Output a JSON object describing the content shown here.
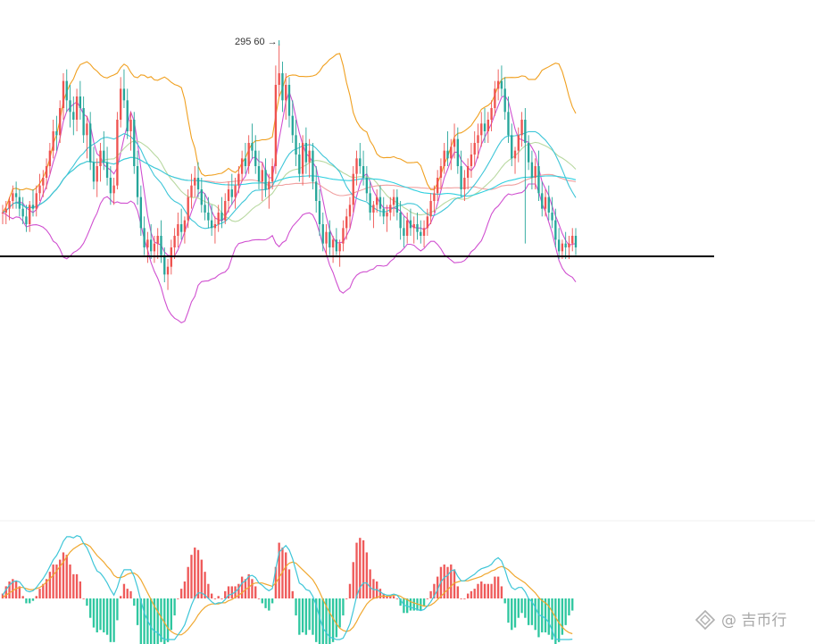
{
  "chart_data": [
    {
      "type": "candlestick",
      "title": "",
      "xlabel": "",
      "ylabel": "",
      "ylim": [
        210,
        300
      ],
      "grid": false,
      "legend": "none",
      "annotation": {
        "text": "295 60 →",
        "value": 295.6,
        "bar_index": 82
      },
      "support_line": {
        "value": 240.7
      },
      "ohlc": [
        [
          252,
          254,
          249,
          252
        ],
        [
          252,
          255,
          249,
          253
        ],
        [
          253,
          256,
          250,
          255
        ],
        [
          255,
          259,
          253,
          257
        ],
        [
          257,
          260,
          253,
          256
        ],
        [
          256,
          258,
          251,
          253
        ],
        [
          253,
          256,
          249,
          251
        ],
        [
          251,
          254,
          247,
          249
        ],
        [
          249,
          255,
          247,
          254
        ],
        [
          254,
          258,
          251,
          253
        ],
        [
          253,
          259,
          251,
          257
        ],
        [
          257,
          262,
          255,
          259
        ],
        [
          259,
          263,
          256,
          261
        ],
        [
          261,
          266,
          258,
          264
        ],
        [
          264,
          270,
          262,
          268
        ],
        [
          268,
          276,
          266,
          273
        ],
        [
          273,
          277,
          268,
          272
        ],
        [
          272,
          281,
          270,
          279
        ],
        [
          279,
          288,
          276,
          286
        ],
        [
          286,
          289,
          278,
          281
        ],
        [
          281,
          285,
          274,
          278
        ],
        [
          278,
          282,
          272,
          276
        ],
        [
          276,
          284,
          273,
          282
        ],
        [
          282,
          286,
          276,
          279
        ],
        [
          279,
          282,
          270,
          272
        ],
        [
          272,
          277,
          266,
          275
        ],
        [
          275,
          278,
          263,
          265
        ],
        [
          265,
          269,
          258,
          260
        ],
        [
          260,
          266,
          256,
          264
        ],
        [
          264,
          270,
          260,
          268
        ],
        [
          268,
          273,
          263,
          265
        ],
        [
          265,
          269,
          259,
          261
        ],
        [
          261,
          264,
          254,
          257
        ],
        [
          257,
          261,
          254,
          259
        ],
        [
          259,
          278,
          258,
          276
        ],
        [
          276,
          287,
          274,
          284
        ],
        [
          284,
          289,
          279,
          281
        ],
        [
          281,
          284,
          271,
          273
        ],
        [
          273,
          278,
          268,
          276
        ],
        [
          276,
          278,
          262,
          264
        ],
        [
          264,
          268,
          254,
          256
        ],
        [
          256,
          259,
          246,
          248
        ],
        [
          248,
          251,
          241,
          243
        ],
        [
          243,
          247,
          239,
          245
        ],
        [
          245,
          249,
          240,
          242
        ],
        [
          242,
          246,
          239,
          244
        ],
        [
          244,
          248,
          240,
          246
        ],
        [
          246,
          250,
          239,
          241
        ],
        [
          241,
          243,
          234,
          236
        ],
        [
          236,
          240,
          232,
          238
        ],
        [
          238,
          245,
          236,
          243
        ],
        [
          243,
          248,
          240,
          246
        ],
        [
          246,
          252,
          243,
          249
        ],
        [
          249,
          253,
          245,
          247
        ],
        [
          247,
          251,
          244,
          250
        ],
        [
          250,
          258,
          248,
          256
        ],
        [
          256,
          262,
          253,
          259
        ],
        [
          259,
          264,
          256,
          261
        ],
        [
          261,
          265,
          256,
          258
        ],
        [
          258,
          261,
          252,
          254
        ],
        [
          254,
          257,
          250,
          252
        ],
        [
          252,
          256,
          248,
          250
        ],
        [
          250,
          254,
          246,
          248
        ],
        [
          248,
          251,
          244,
          249
        ],
        [
          249,
          254,
          247,
          252
        ],
        [
          252,
          256,
          248,
          250
        ],
        [
          250,
          257,
          249,
          255
        ],
        [
          255,
          260,
          252,
          258
        ],
        [
          258,
          262,
          254,
          256
        ],
        [
          256,
          261,
          253,
          259
        ],
        [
          259,
          264,
          257,
          262
        ],
        [
          262,
          268,
          260,
          266
        ],
        [
          266,
          270,
          262,
          264
        ],
        [
          264,
          272,
          262,
          270
        ],
        [
          270,
          275,
          266,
          268
        ],
        [
          268,
          272,
          262,
          264
        ],
        [
          264,
          268,
          258,
          260
        ],
        [
          260,
          265,
          255,
          263
        ],
        [
          263,
          266,
          256,
          258
        ],
        [
          258,
          262,
          253,
          260
        ],
        [
          260,
          266,
          258,
          264
        ],
        [
          264,
          290,
          262,
          285
        ],
        [
          285,
          295.6,
          282,
          288
        ],
        [
          288,
          291,
          278,
          281
        ],
        [
          281,
          288,
          276,
          285
        ],
        [
          285,
          287,
          274,
          277
        ],
        [
          277,
          281,
          270,
          272
        ],
        [
          272,
          276,
          264,
          267
        ],
        [
          267,
          270,
          260,
          262
        ],
        [
          262,
          272,
          259,
          270
        ],
        [
          270,
          274,
          262,
          265
        ],
        [
          265,
          271,
          261,
          268
        ],
        [
          268,
          270,
          258,
          260
        ],
        [
          260,
          264,
          252,
          255
        ],
        [
          255,
          258,
          246,
          249
        ],
        [
          249,
          252,
          242,
          244
        ],
        [
          244,
          249,
          241,
          247
        ],
        [
          247,
          250,
          241,
          243
        ],
        [
          243,
          246,
          239,
          245
        ],
        [
          245,
          248,
          241,
          242
        ],
        [
          242,
          245,
          238,
          244
        ],
        [
          244,
          250,
          242,
          248
        ],
        [
          248,
          253,
          245,
          251
        ],
        [
          251,
          256,
          248,
          254
        ],
        [
          254,
          264,
          252,
          262
        ],
        [
          262,
          268,
          259,
          266
        ],
        [
          266,
          270,
          262,
          264
        ],
        [
          264,
          268,
          259,
          261
        ],
        [
          261,
          264,
          255,
          257
        ],
        [
          257,
          260,
          250,
          252
        ],
        [
          252,
          255,
          248,
          254
        ],
        [
          254,
          258,
          252,
          256
        ],
        [
          256,
          259,
          251,
          253
        ],
        [
          253,
          256,
          249,
          251
        ],
        [
          251,
          254,
          247,
          252
        ],
        [
          252,
          256,
          250,
          254
        ],
        [
          254,
          258,
          251,
          256
        ],
        [
          256,
          258,
          250,
          252
        ],
        [
          252,
          255,
          245,
          248
        ],
        [
          248,
          251,
          243,
          246
        ],
        [
          246,
          252,
          244,
          250
        ],
        [
          250,
          253,
          246,
          248
        ],
        [
          248,
          251,
          244,
          249
        ],
        [
          249,
          252,
          245,
          247
        ],
        [
          247,
          250,
          244,
          246
        ],
        [
          246,
          250,
          243,
          248
        ],
        [
          248,
          253,
          246,
          251
        ],
        [
          251,
          257,
          249,
          255
        ],
        [
          255,
          259,
          252,
          257
        ],
        [
          257,
          263,
          255,
          261
        ],
        [
          261,
          266,
          258,
          264
        ],
        [
          264,
          270,
          262,
          268
        ],
        [
          268,
          273,
          264,
          266
        ],
        [
          266,
          271,
          263,
          269
        ],
        [
          269,
          275,
          266,
          271
        ],
        [
          271,
          274,
          262,
          264
        ],
        [
          264,
          268,
          256,
          258
        ],
        [
          258,
          263,
          255,
          261
        ],
        [
          261,
          266,
          258,
          264
        ],
        [
          264,
          270,
          261,
          267
        ],
        [
          267,
          273,
          264,
          270
        ],
        [
          270,
          275,
          266,
          272
        ],
        [
          272,
          278,
          269,
          275
        ],
        [
          275,
          279,
          270,
          273
        ],
        [
          273,
          278,
          270,
          276
        ],
        [
          276,
          281,
          273,
          279
        ],
        [
          279,
          286,
          277,
          284
        ],
        [
          284,
          289,
          281,
          286
        ],
        [
          286,
          290,
          282,
          284
        ],
        [
          284,
          287,
          276,
          278
        ],
        [
          278,
          282,
          270,
          272
        ],
        [
          272,
          275,
          264,
          266
        ],
        [
          266,
          269,
          262,
          268
        ],
        [
          268,
          274,
          265,
          272
        ],
        [
          272,
          278,
          269,
          276
        ],
        [
          276,
          279,
          244,
          270
        ],
        [
          270,
          272,
          263,
          265
        ],
        [
          265,
          268,
          258,
          261
        ],
        [
          261,
          266,
          258,
          264
        ],
        [
          264,
          268,
          255,
          257
        ],
        [
          257,
          260,
          251,
          253
        ],
        [
          253,
          258,
          251,
          256
        ],
        [
          256,
          259,
          250,
          252
        ],
        [
          252,
          256,
          248,
          250
        ],
        [
          250,
          253,
          243,
          245
        ],
        [
          245,
          248,
          240,
          242
        ],
        [
          242,
          245,
          240,
          244
        ],
        [
          244,
          247,
          240,
          243
        ],
        [
          243,
          246,
          240,
          244
        ],
        [
          244,
          248,
          242,
          246
        ],
        [
          246,
          248,
          241,
          243
        ]
      ]
    },
    {
      "type": "macd",
      "title": "",
      "xlabel": "",
      "ylabel": "",
      "grid": false,
      "legend": "none",
      "start_bar": 0,
      "dif": [
        0.3,
        0.8,
        1.2,
        1.5,
        1.6,
        1.5,
        1.1,
        0.7,
        0.6,
        0.7,
        1.0,
        1.4,
        1.8,
        2.3,
        2.9,
        3.5,
        3.9,
        4.5,
        5.2,
        5.6,
        5.6,
        5.5,
        5.7,
        5.6,
        5.0,
        4.6,
        3.9,
        3.1,
        2.5,
        2.3,
        1.9,
        1.4,
        0.8,
        0.3,
        1.0,
        2.0,
        2.6,
        2.6,
        2.6,
        2.0,
        1.0,
        -0.2,
        -1.3,
        -2.0,
        -2.6,
        -3.0,
        -3.1,
        -3.5,
        -4.2,
        -4.5,
        -4.3,
        -3.9,
        -3.3,
        -2.9,
        -2.4,
        -1.5,
        -0.6,
        0.1,
        0.5,
        0.5,
        0.3,
        0.0,
        -0.3,
        -0.5,
        -0.4,
        -0.4,
        -0.1,
        0.3,
        0.4,
        0.6,
        0.9,
        1.4,
        1.6,
        2.0,
        2.1,
        1.9,
        1.4,
        1.2,
        0.9,
        0.7,
        0.9,
        2.7,
        4.2,
        4.5,
        4.8,
        4.4,
        3.6,
        2.5,
        1.4,
        1.2,
        0.8,
        0.7,
        0.2,
        -0.6,
        -1.7,
        -2.7,
        -3.1,
        -3.5,
        -3.6,
        -3.9,
        -3.9,
        -3.6,
        -3.0,
        -2.3,
        -1.1,
        0.2,
        1.0,
        1.4,
        1.4,
        1.0,
        0.8,
        0.8,
        0.6,
        0.4,
        0.3,
        0.3,
        0.4,
        0.3,
        -0.1,
        -0.6,
        -0.7,
        -0.8,
        -0.9,
        -1.0,
        -1.1,
        -1.0,
        -0.7,
        -0.3,
        0.2,
        0.8,
        1.5,
        1.9,
        2.1,
        2.5,
        2.6,
        2.0,
        1.6,
        1.6,
        1.8,
        2.0,
        2.2,
        2.5,
        2.7,
        2.8,
        2.9,
        3.1,
        3.5,
        3.7,
        3.4,
        2.6,
        1.6,
        1.0,
        0.8,
        1.0,
        1.0,
        0.6,
        0.0,
        -0.3,
        -0.8,
        -1.5,
        -1.6,
        -1.8,
        -2.2,
        -2.9,
        -3.7,
        -4.0,
        -4.1,
        -4.0,
        -3.8,
        -3.7
      ],
      "dea": [
        0.1,
        0.3,
        0.5,
        0.7,
        0.9,
        1.0,
        1.0,
        0.9,
        0.8,
        0.8,
        0.9,
        1.0,
        1.2,
        1.5,
        1.8,
        2.1,
        2.5,
        2.9,
        3.3,
        3.8,
        4.2,
        4.5,
        4.7,
        4.9,
        5.0,
        4.9,
        4.7,
        4.3,
        3.9,
        3.6,
        3.3,
        2.9,
        2.6,
        2.1,
        1.9,
        1.9,
        2.0,
        2.2,
        2.3,
        2.3,
        2.1,
        1.7,
        1.1,
        0.5,
        -0.1,
        -0.7,
        -1.2,
        -1.7,
        -2.2,
        -2.7,
        -3.0,
        -3.2,
        -3.3,
        -3.3,
        -3.1,
        -2.8,
        -2.4,
        -2.0,
        -1.5,
        -1.1,
        -0.8,
        -0.6,
        -0.5,
        -0.5,
        -0.5,
        -0.4,
        -0.4,
        -0.2,
        -0.1,
        0.1,
        0.3,
        0.5,
        0.8,
        1.0,
        1.3,
        1.4,
        1.4,
        1.4,
        1.3,
        1.2,
        1.1,
        1.4,
        1.9,
        2.4,
        2.9,
        3.2,
        3.3,
        3.2,
        2.9,
        2.6,
        2.3,
        2.0,
        1.7,
        1.2,
        0.6,
        -0.1,
        -0.7,
        -1.3,
        -1.8,
        -2.3,
        -2.7,
        -2.9,
        -3.0,
        -2.9,
        -2.6,
        -2.1,
        -1.5,
        -1.0,
        -0.5,
        -0.2,
        0.0,
        0.1,
        0.2,
        0.2,
        0.2,
        0.2,
        0.3,
        0.3,
        0.2,
        0.0,
        -0.1,
        -0.3,
        -0.4,
        -0.5,
        -0.6,
        -0.7,
        -0.7,
        -0.6,
        -0.4,
        -0.1,
        0.2,
        0.5,
        0.8,
        1.1,
        1.4,
        1.5,
        1.6,
        1.6,
        1.6,
        1.7,
        1.8,
        1.9,
        2.0,
        2.2,
        2.3,
        2.5,
        2.6,
        2.8,
        2.9,
        2.8,
        2.6,
        2.3,
        2.0,
        1.8,
        1.6,
        1.4,
        1.1,
        0.8,
        0.5,
        0.1,
        -0.2,
        -0.4,
        -0.7,
        -1.2,
        -1.7,
        -2.2,
        -2.6,
        -2.9,
        -3.1,
        -3.2
      ]
    }
  ],
  "watermark": {
    "text": "@ 吉币行",
    "icon": "binance-diamond-icon",
    "color": "#a8a8a8"
  },
  "colors": {
    "up": "#ef5350",
    "down": "#26a69a",
    "dif": "#3fc6d8",
    "dea": "#f0a830",
    "hist_up": "#ef5a5a",
    "hist_down": "#2fc7a0",
    "support": "#000000",
    "boll_upper": "#f0a020",
    "boll_middle": "#3fc6d8",
    "boll_lower": "#d050d0",
    "ma_short": "#d050d0",
    "ma_mid": "#b8d8a0",
    "ma_long": "#f0a0a0",
    "ma_longest": "#30d0e0"
  }
}
